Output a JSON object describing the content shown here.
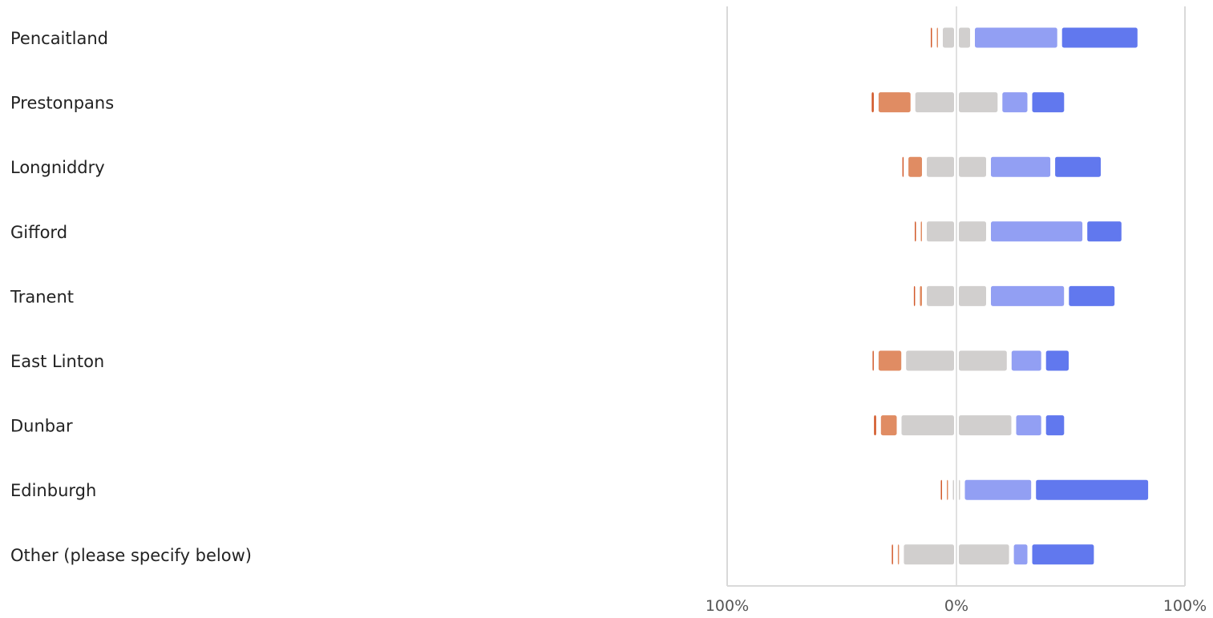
{
  "chart_data": {
    "type": "bar",
    "subtype": "diverging-stacked",
    "categories": [
      "Pencaitland",
      "Prestonpans",
      "Longniddry",
      "Gifford",
      "Tranent",
      "East Linton",
      "Dunbar",
      "Edinburgh",
      "Other (please specify below)"
    ],
    "series": [
      {
        "key": "s1",
        "color": "#d2592a",
        "values": [
          1,
          3,
          1,
          1,
          1,
          2,
          3,
          1,
          1
        ]
      },
      {
        "key": "s2",
        "color": "#e08c63",
        "values": [
          1,
          16,
          8,
          1,
          3,
          12,
          9,
          1,
          1
        ]
      },
      {
        "key": "s3",
        "color": "#d1cfce",
        "values": [
          7,
          19,
          14,
          14,
          14,
          23,
          25,
          2,
          24
        ]
      },
      {
        "key": "s4",
        "color": "#d1cfce",
        "values": [
          7,
          19,
          14,
          14,
          14,
          23,
          25,
          2,
          24
        ]
      },
      {
        "key": "s5",
        "color": "#929ff3",
        "values": [
          38,
          13,
          28,
          42,
          34,
          15,
          13,
          31,
          8
        ]
      },
      {
        "key": "s6",
        "color": "#6178ee",
        "values": [
          35,
          16,
          22,
          17,
          22,
          12,
          10,
          51,
          29
        ]
      }
    ],
    "xlim": [
      -100,
      100
    ],
    "tick_labels": [
      "100%",
      "0%",
      "100%"
    ],
    "title": "",
    "xlabel": "",
    "ylabel": "",
    "grid": false,
    "legend": "none"
  }
}
